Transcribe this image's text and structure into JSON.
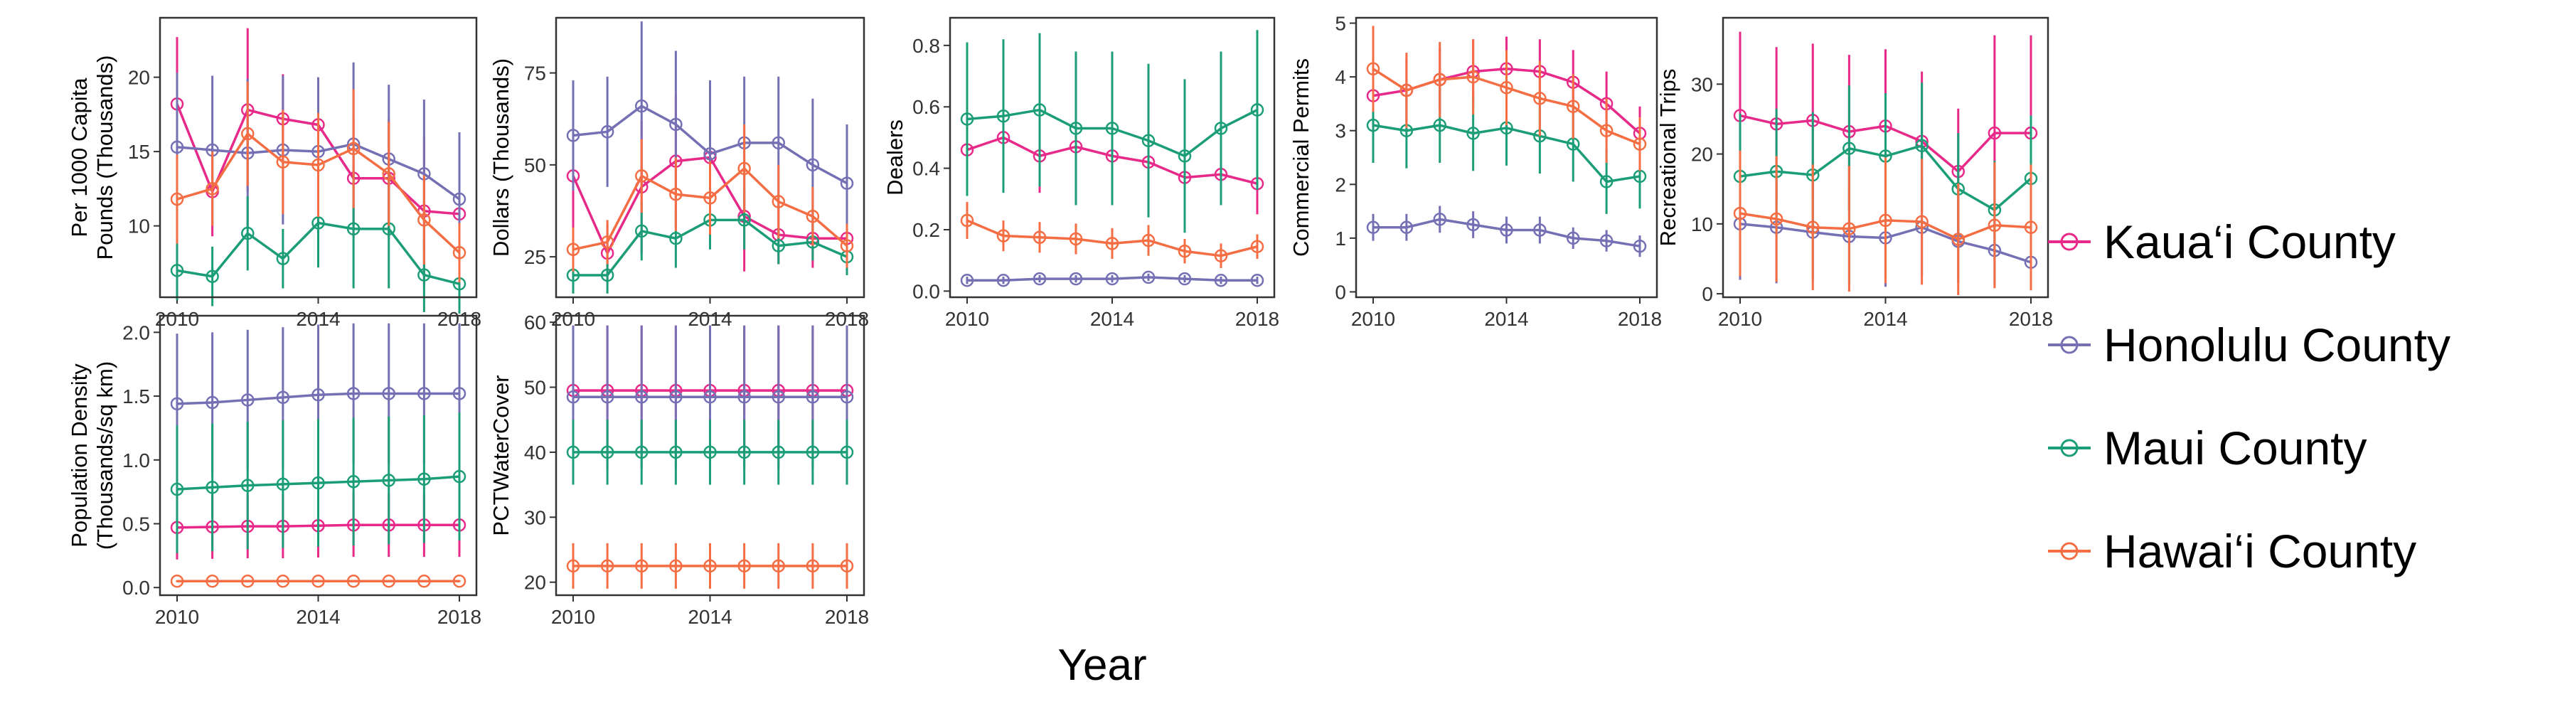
{
  "chart_data": {
    "type": "line",
    "x_title": "Year",
    "x": [
      2010,
      2011,
      2012,
      2013,
      2014,
      2015,
      2016,
      2017,
      2018
    ],
    "x_ticks": [
      2010,
      2014,
      2018
    ],
    "series_meta": [
      {
        "name": "Kaua‘i County",
        "color": "#E7298A"
      },
      {
        "name": "Honolulu County",
        "color": "#7570B3"
      },
      {
        "name": "Maui County",
        "color": "#1B9E77"
      },
      {
        "name": "Hawai‘i County",
        "color": "#F46D43"
      }
    ],
    "legend_position": "right",
    "grid": false,
    "panels": [
      {
        "ylabel": [
          "Per 1000 Capita",
          "Pounds (Thousands)"
        ],
        "ylim": [
          5.2,
          24.0
        ],
        "yticks": [
          10,
          15,
          20
        ],
        "series": [
          {
            "values": [
              18.2,
              12.3,
              17.8,
              17.2,
              16.8,
              13.2,
              13.2,
              11.0,
              10.8
            ],
            "errors": [
              4.5,
              3.0,
              5.5,
              3.0,
              3.0,
              4.0,
              4.0,
              5.0,
              3.5
            ]
          },
          {
            "values": [
              15.3,
              15.1,
              14.9,
              15.1,
              15.0,
              15.5,
              14.5,
              13.5,
              11.8
            ],
            "errors": [
              5.0,
              5.0,
              5.0,
              5.0,
              5.0,
              5.5,
              5.0,
              5.0,
              4.5
            ]
          },
          {
            "values": [
              7.0,
              6.6,
              9.5,
              7.8,
              10.2,
              9.8,
              9.8,
              6.7,
              6.1
            ],
            "errors": [
              2.0,
              2.0,
              2.5,
              2.0,
              3.0,
              4.0,
              4.0,
              2.5,
              2.0
            ]
          },
          {
            "values": [
              11.8,
              12.5,
              16.2,
              14.3,
              14.1,
              15.2,
              13.5,
              10.4,
              8.2
            ],
            "errors": [
              3.0,
              2.5,
              3.5,
              3.5,
              3.5,
              4.0,
              3.5,
              3.0,
              2.0
            ]
          }
        ]
      },
      {
        "ylabel": [
          "Dollars (Thousands)"
        ],
        "ylim": [
          14.0,
          90.0
        ],
        "yticks": [
          25,
          50,
          75
        ],
        "series": [
          {
            "values": [
              47.0,
              26.0,
              44.0,
              51.0,
              52.0,
              36.0,
              31.0,
              30.0,
              30.0
            ],
            "errors": [
              15.0,
              8.0,
              18.0,
              18.0,
              18.0,
              15.0,
              8.0,
              8.0,
              8.0
            ]
          },
          {
            "values": [
              58.0,
              59.0,
              66.0,
              61.0,
              53.0,
              56.0,
              56.0,
              50.0,
              45.0
            ],
            "errors": [
              15.0,
              15.0,
              23.0,
              20.0,
              20.0,
              18.0,
              18.0,
              18.0,
              16.0
            ]
          },
          {
            "values": [
              20.0,
              20.0,
              32.0,
              30.0,
              35.0,
              35.0,
              28.0,
              29.0,
              25.0
            ],
            "errors": [
              5.0,
              5.0,
              8.0,
              8.0,
              8.0,
              8.0,
              5.0,
              5.0,
              5.0
            ]
          },
          {
            "values": [
              27.0,
              29.0,
              47.0,
              42.0,
              41.0,
              49.0,
              40.0,
              36.0,
              28.0
            ],
            "errors": [
              6.0,
              6.0,
              10.0,
              10.0,
              10.0,
              12.0,
              10.0,
              8.0,
              6.0
            ]
          }
        ]
      },
      {
        "ylabel": [
          "Dealers"
        ],
        "ylim": [
          -0.02,
          0.89
        ],
        "yticks": [
          0.0,
          0.2,
          0.4,
          0.6,
          0.8
        ],
        "series": [
          {
            "values": [
              0.46,
              0.5,
              0.44,
              0.47,
              0.44,
              0.42,
              0.37,
              0.38,
              0.35
            ],
            "errors": [
              0.12,
              0.12,
              0.12,
              0.12,
              0.12,
              0.12,
              0.1,
              0.1,
              0.1
            ]
          },
          {
            "values": [
              0.035,
              0.035,
              0.04,
              0.04,
              0.04,
              0.045,
              0.04,
              0.035,
              0.035
            ],
            "errors": [
              0.012,
              0.012,
              0.012,
              0.012,
              0.012,
              0.012,
              0.012,
              0.012,
              0.012
            ]
          },
          {
            "values": [
              0.56,
              0.57,
              0.59,
              0.53,
              0.53,
              0.49,
              0.44,
              0.53,
              0.59
            ],
            "errors": [
              0.25,
              0.25,
              0.25,
              0.25,
              0.25,
              0.25,
              0.25,
              0.25,
              0.26
            ]
          },
          {
            "values": [
              0.23,
              0.18,
              0.175,
              0.17,
              0.155,
              0.165,
              0.13,
              0.115,
              0.145
            ],
            "errors": [
              0.06,
              0.05,
              0.05,
              0.05,
              0.05,
              0.05,
              0.04,
              0.04,
              0.04
            ]
          }
        ]
      },
      {
        "ylabel": [
          "Commercial Permits"
        ],
        "ylim": [
          -0.1,
          5.1
        ],
        "yticks": [
          0,
          1,
          2,
          3,
          4,
          5
        ],
        "series": [
          {
            "values": [
              3.65,
              3.75,
              3.95,
              4.1,
              4.15,
              4.1,
              3.9,
              3.5,
              2.95
            ],
            "errors": [
              0.6,
              0.6,
              0.6,
              0.6,
              0.6,
              0.6,
              0.6,
              0.6,
              0.5
            ]
          },
          {
            "values": [
              1.2,
              1.2,
              1.35,
              1.25,
              1.15,
              1.15,
              1.0,
              0.95,
              0.85
            ],
            "errors": [
              0.25,
              0.25,
              0.25,
              0.25,
              0.25,
              0.25,
              0.2,
              0.2,
              0.2
            ]
          },
          {
            "values": [
              3.1,
              3.0,
              3.1,
              2.95,
              3.05,
              2.9,
              2.75,
              2.05,
              2.15
            ],
            "errors": [
              0.7,
              0.7,
              0.7,
              0.7,
              0.7,
              0.7,
              0.7,
              0.6,
              0.6
            ]
          },
          {
            "values": [
              4.15,
              3.75,
              3.95,
              4.0,
              3.8,
              3.6,
              3.45,
              3.0,
              2.75
            ],
            "errors": [
              0.8,
              0.7,
              0.7,
              0.7,
              0.7,
              0.7,
              0.6,
              0.6,
              0.5
            ]
          }
        ]
      },
      {
        "ylabel": [
          "Recreational Trips"
        ],
        "ylim": [
          -0.5,
          39.5
        ],
        "yticks": [
          0,
          10,
          20,
          30
        ],
        "series": [
          {
            "values": [
              25.5,
              24.3,
              24.8,
              23.2,
              24.0,
              21.8,
              17.5,
              23.0,
              23.0
            ],
            "errors": [
              12.0,
              11.0,
              11.0,
              11.0,
              11.0,
              10.0,
              9.0,
              14.0,
              14.0
            ]
          },
          {
            "values": [
              10.0,
              9.5,
              8.8,
              8.2,
              8.0,
              9.5,
              7.5,
              6.2,
              4.5
            ],
            "errors": [
              8.0,
              8.0,
              7.0,
              7.0,
              7.0,
              7.0,
              6.0,
              5.0,
              4.0
            ]
          },
          {
            "values": [
              16.8,
              17.5,
              17.0,
              20.8,
              19.7,
              21.2,
              15.0,
              12.0,
              16.5
            ],
            "errors": [
              9.0,
              9.0,
              9.0,
              9.0,
              9.0,
              9.0,
              8.0,
              7.0,
              9.0
            ]
          },
          {
            "values": [
              11.5,
              10.7,
              9.5,
              9.3,
              10.5,
              10.3,
              7.8,
              9.8,
              9.5
            ],
            "errors": [
              9.0,
              9.0,
              9.0,
              9.0,
              9.0,
              9.0,
              8.0,
              9.0,
              9.0
            ]
          }
        ]
      },
      {
        "ylabel": [
          "Population Density",
          "(Thousands/sq km)"
        ],
        "ylim": [
          -0.06,
          2.13
        ],
        "yticks": [
          0.0,
          0.5,
          1.0,
          1.5,
          2.0
        ],
        "series": [
          {
            "values": [
              0.47,
              0.475,
              0.48,
              0.48,
              0.485,
              0.49,
              0.49,
              0.49,
              0.49
            ],
            "errors": [
              0.25,
              0.25,
              0.25,
              0.25,
              0.25,
              0.25,
              0.25,
              0.25,
              0.25
            ]
          },
          {
            "values": [
              1.44,
              1.45,
              1.47,
              1.49,
              1.51,
              1.52,
              1.52,
              1.52,
              1.52
            ],
            "errors": [
              0.55,
              0.55,
              0.55,
              0.55,
              0.55,
              0.55,
              0.55,
              0.55,
              0.55
            ]
          },
          {
            "values": [
              0.77,
              0.785,
              0.8,
              0.81,
              0.82,
              0.83,
              0.84,
              0.85,
              0.87
            ],
            "errors": [
              0.5,
              0.5,
              0.5,
              0.5,
              0.5,
              0.5,
              0.5,
              0.5,
              0.5
            ]
          },
          {
            "values": [
              0.05,
              0.05,
              0.05,
              0.05,
              0.05,
              0.05,
              0.05,
              0.05,
              0.05
            ],
            "errors": [
              0.008,
              0.008,
              0.008,
              0.008,
              0.008,
              0.008,
              0.008,
              0.008,
              0.008
            ]
          }
        ]
      },
      {
        "ylabel": [
          "PCTWaterCover"
        ],
        "ylim": [
          18.0,
          61.0
        ],
        "yticks": [
          20,
          30,
          40,
          50,
          60
        ],
        "series": [
          {
            "values": [
              49.5,
              49.5,
              49.5,
              49.5,
              49.5,
              49.5,
              49.5,
              49.5,
              49.5
            ],
            "errors": [
              10.0,
              10.0,
              10.0,
              10.0,
              10.0,
              10.0,
              10.0,
              10.0,
              10.0
            ]
          },
          {
            "values": [
              48.5,
              48.5,
              48.5,
              48.5,
              48.5,
              48.5,
              48.5,
              48.5,
              48.5
            ],
            "errors": [
              11.0,
              11.0,
              11.0,
              11.0,
              11.0,
              11.0,
              11.0,
              11.0,
              11.0
            ]
          },
          {
            "values": [
              40.0,
              40.0,
              40.0,
              40.0,
              40.0,
              40.0,
              40.0,
              40.0,
              40.0
            ],
            "errors": [
              5.0,
              5.0,
              5.0,
              5.0,
              5.0,
              5.0,
              5.0,
              5.0,
              5.0
            ]
          },
          {
            "values": [
              22.5,
              22.5,
              22.5,
              22.5,
              22.5,
              22.5,
              22.5,
              22.5,
              22.5
            ],
            "errors": [
              3.5,
              3.5,
              3.5,
              3.5,
              3.5,
              3.5,
              3.5,
              3.5,
              3.5
            ]
          }
        ]
      }
    ]
  }
}
